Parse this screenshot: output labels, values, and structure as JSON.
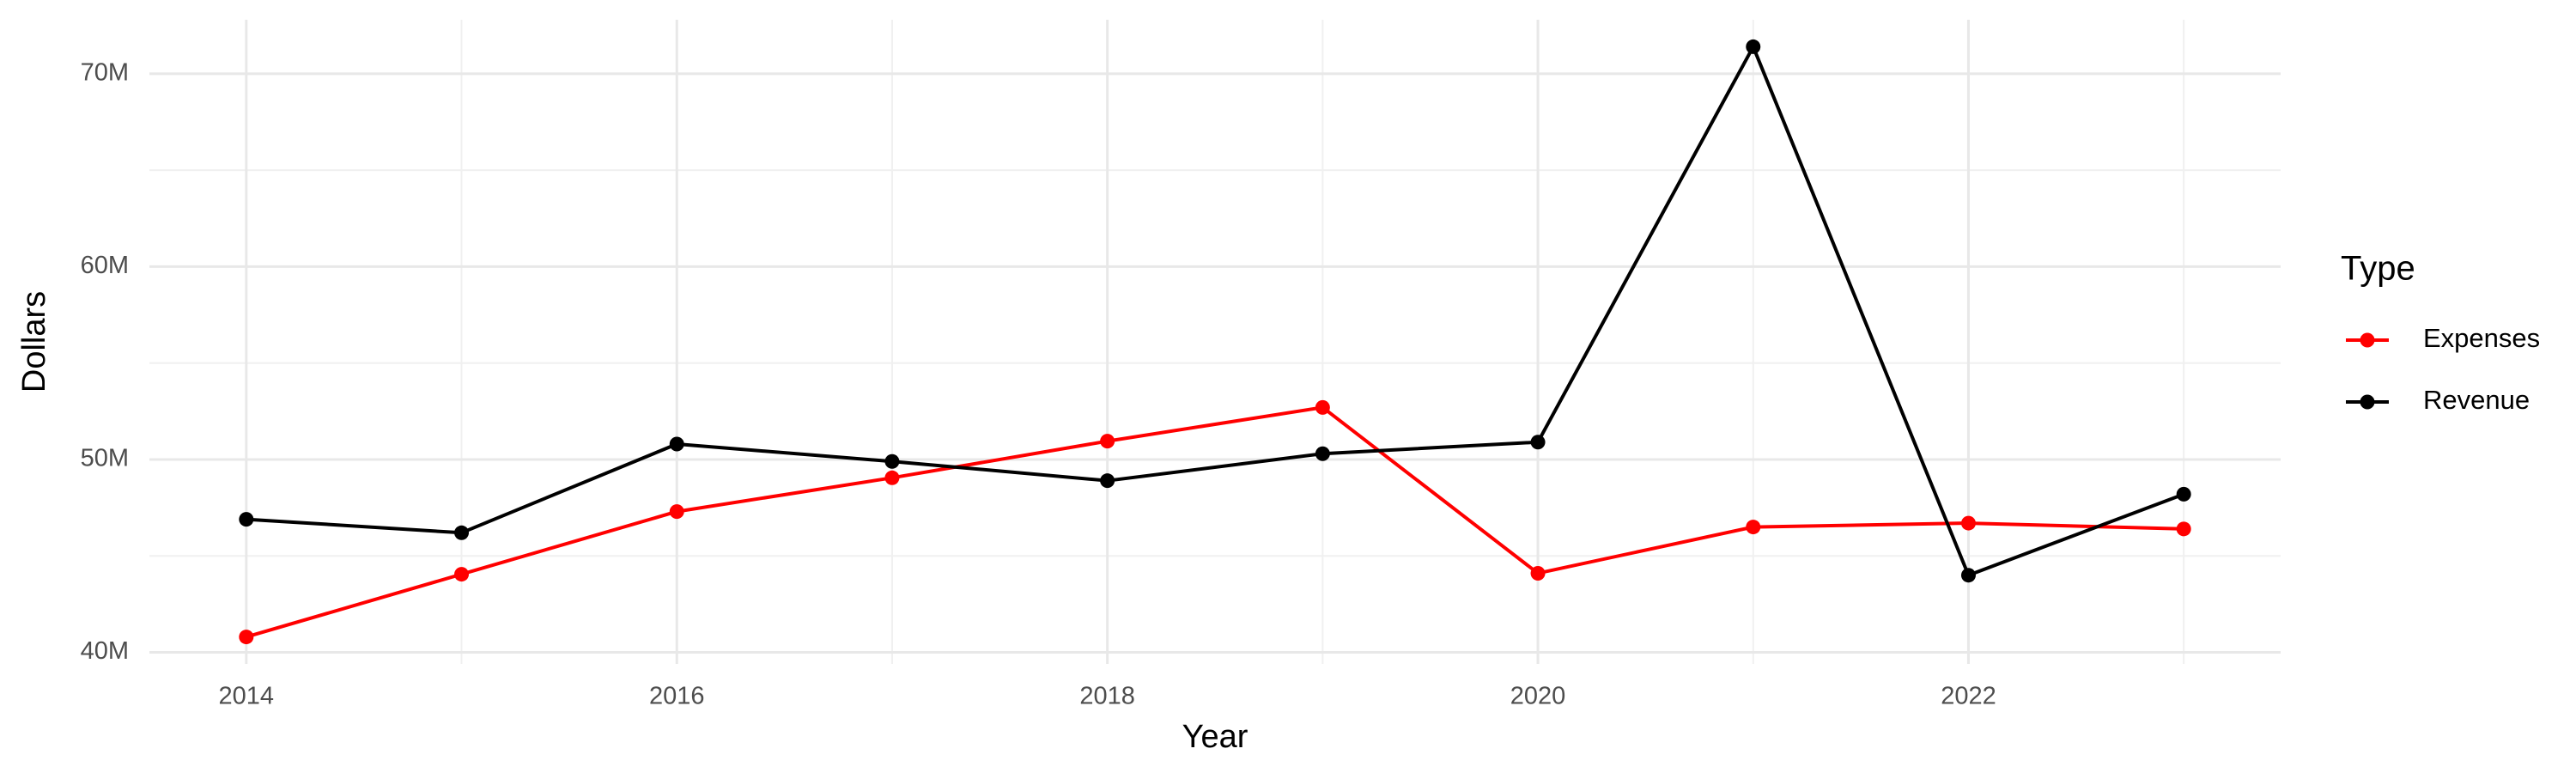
{
  "chart_data": {
    "type": "line",
    "x_label": "Year",
    "y_label": "Dollars",
    "legend_title": "Type",
    "legend_position": "right",
    "grid": true,
    "x": [
      2014,
      2015,
      2016,
      2017,
      2018,
      2019,
      2020,
      2021,
      2022,
      2023
    ],
    "series": [
      {
        "name": "Expenses",
        "color": "#ff0000",
        "values": [
          40800000,
          44050000,
          47300000,
          49050000,
          50950000,
          52700000,
          44100000,
          46500000,
          46700000,
          46400000
        ]
      },
      {
        "name": "Revenue",
        "color": "#000000",
        "values": [
          46900000,
          46200000,
          50800000,
          49900000,
          48900000,
          50300000,
          50900000,
          71400000,
          44000000,
          48200000
        ]
      }
    ],
    "xlim": [
      2013.55,
      2023.45
    ],
    "xticks": [
      2014,
      2016,
      2018,
      2020,
      2022
    ],
    "x_minor_ticks": [
      2015,
      2017,
      2019,
      2021,
      2023
    ],
    "ylim": [
      39400000,
      72800000
    ],
    "yticks": [
      {
        "value": 40000000,
        "label": "40M"
      },
      {
        "value": 50000000,
        "label": "50M"
      },
      {
        "value": 60000000,
        "label": "60M"
      },
      {
        "value": 70000000,
        "label": "70M"
      }
    ],
    "y_minor_ticks": [
      45000000,
      55000000,
      65000000
    ]
  }
}
